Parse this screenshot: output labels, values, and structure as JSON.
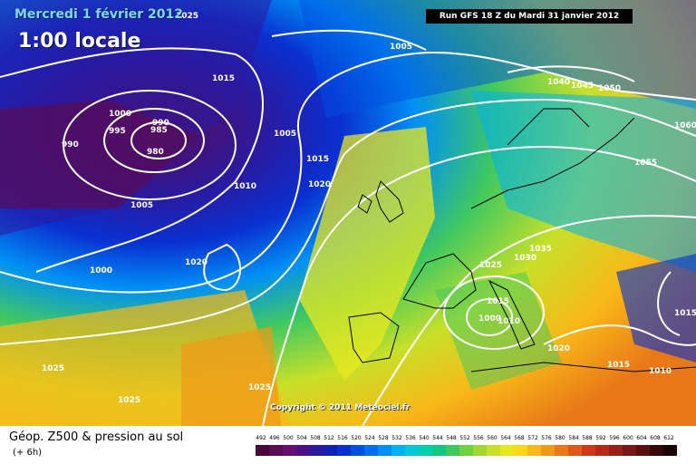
{
  "header": {
    "date": "Mercredi 1 février 2012",
    "time": "1:00 locale",
    "run": "Run GFS 18 Z du Mardi 31 janvier 2012"
  },
  "copyright": "Copyright © 2011 Meteociel.fr",
  "legend": {
    "title": "Géop. Z500 & pression au sol",
    "subtitle": "(+ 6h)",
    "ticks": [
      "492",
      "496",
      "500",
      "504",
      "508",
      "512",
      "516",
      "520",
      "524",
      "528",
      "532",
      "536",
      "540",
      "544",
      "548",
      "552",
      "556",
      "560",
      "564",
      "568",
      "572",
      "576",
      "580",
      "584",
      "588",
      "592",
      "596",
      "600",
      "604",
      "608",
      "612"
    ],
    "colors": [
      "#4a0838",
      "#5a0c55",
      "#660f6e",
      "#4b0f88",
      "#2a1aa0",
      "#1020b8",
      "#0a30d0",
      "#0050e0",
      "#006ef0",
      "#0090f5",
      "#00b0f0",
      "#00c8d8",
      "#00d0b0",
      "#10c880",
      "#40c860",
      "#70d040",
      "#a0d830",
      "#c8e028",
      "#e8e820",
      "#f8d818",
      "#f8b818",
      "#f09818",
      "#e87818",
      "#e05818",
      "#d03818",
      "#b82818",
      "#982018",
      "#781818",
      "#581010",
      "#380808",
      "#180404"
    ]
  },
  "pressure_labels": [
    "1025",
    "1005",
    "1015",
    "1000",
    "990",
    "995",
    "985",
    "980",
    "990",
    "1005",
    "1015",
    "1010",
    "1020",
    "1005",
    "1000",
    "1020",
    "1025",
    "1025",
    "1025",
    "1040",
    "1045",
    "1050",
    "1060",
    "1055",
    "1035",
    "1030",
    "1025",
    "1015",
    "1000",
    "1010",
    "1020",
    "1015",
    "1010",
    "1015"
  ],
  "map_colors": {
    "purple": "#5a1a6a",
    "blue": "#1030c0",
    "cyan": "#00b0f0",
    "green": "#40c860",
    "yellow": "#e8e820",
    "orange": "#f0a020"
  }
}
